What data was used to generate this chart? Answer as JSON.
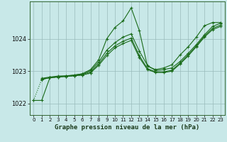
{
  "title": "Graphe pression niveau de la mer (hPa)",
  "bg_color": "#c8e8e8",
  "line_color": "#1a6b1a",
  "grid_color": "#99bbbb",
  "xlim": [
    -0.5,
    23.5
  ],
  "ylim": [
    1021.65,
    1025.15
  ],
  "yticks": [
    1022,
    1023,
    1024
  ],
  "xticks": [
    0,
    1,
    2,
    3,
    4,
    5,
    6,
    7,
    8,
    9,
    10,
    11,
    12,
    13,
    14,
    15,
    16,
    17,
    18,
    19,
    20,
    21,
    22,
    23
  ],
  "series": [
    {
      "x": [
        0,
        1,
        2,
        3,
        4,
        5,
        6,
        7,
        8,
        9,
        10,
        11,
        12,
        13,
        14,
        15,
        16,
        17,
        18,
        19,
        20,
        21,
        22,
        23
      ],
      "y": [
        1022.1,
        1022.1,
        1022.8,
        1022.82,
        1022.85,
        1022.88,
        1022.92,
        1023.05,
        1023.35,
        1024.0,
        1024.35,
        1024.55,
        1024.95,
        1024.25,
        1023.15,
        1023.05,
        1023.1,
        1023.2,
        1023.5,
        1023.75,
        1024.05,
        1024.4,
        1024.5,
        1024.5
      ],
      "style": "-",
      "marker": "+"
    },
    {
      "x": [
        1,
        2,
        3,
        4,
        5,
        6,
        7,
        8,
        9,
        10,
        11,
        12,
        13,
        14,
        15,
        16,
        17,
        18,
        19,
        20,
        21,
        22,
        23
      ],
      "y": [
        1022.78,
        1022.82,
        1022.85,
        1022.86,
        1022.88,
        1022.92,
        1023.02,
        1023.28,
        1023.65,
        1023.88,
        1024.05,
        1024.15,
        1023.62,
        1023.18,
        1023.02,
        1023.05,
        1023.1,
        1023.3,
        1023.55,
        1023.82,
        1024.12,
        1024.38,
        1024.48
      ],
      "style": "-",
      "marker": "+"
    },
    {
      "x": [
        1,
        2,
        3,
        4,
        5,
        6,
        7,
        8,
        9,
        10,
        11,
        12,
        13,
        14,
        15,
        16,
        17,
        18,
        19,
        20,
        21,
        22,
        23
      ],
      "y": [
        1022.75,
        1022.8,
        1022.83,
        1022.84,
        1022.86,
        1022.9,
        1022.98,
        1023.22,
        1023.55,
        1023.78,
        1023.92,
        1024.02,
        1023.48,
        1023.08,
        1022.98,
        1022.98,
        1023.03,
        1023.25,
        1023.5,
        1023.78,
        1024.08,
        1024.32,
        1024.42
      ],
      "style": "-",
      "marker": "+"
    },
    {
      "x": [
        1,
        2,
        3,
        4,
        5,
        6,
        7,
        8,
        9,
        10,
        11,
        12,
        13,
        14,
        15,
        16,
        17,
        18,
        19,
        20,
        21,
        22,
        23
      ],
      "y": [
        1022.75,
        1022.8,
        1022.83,
        1022.84,
        1022.86,
        1022.88,
        1022.95,
        1023.18,
        1023.48,
        1023.72,
        1023.85,
        1023.95,
        1023.42,
        1023.05,
        1022.96,
        1022.96,
        1023.0,
        1023.22,
        1023.47,
        1023.75,
        1024.05,
        1024.28,
        1024.38
      ],
      "style": "-",
      "marker": "+"
    },
    {
      "x": [
        0,
        1,
        2,
        3,
        4,
        5,
        6,
        7
      ],
      "y": [
        1022.1,
        1022.75,
        1022.8,
        1022.82,
        1022.84,
        1022.86,
        1022.88,
        1022.93
      ],
      "style": ":",
      "marker": "+"
    }
  ]
}
